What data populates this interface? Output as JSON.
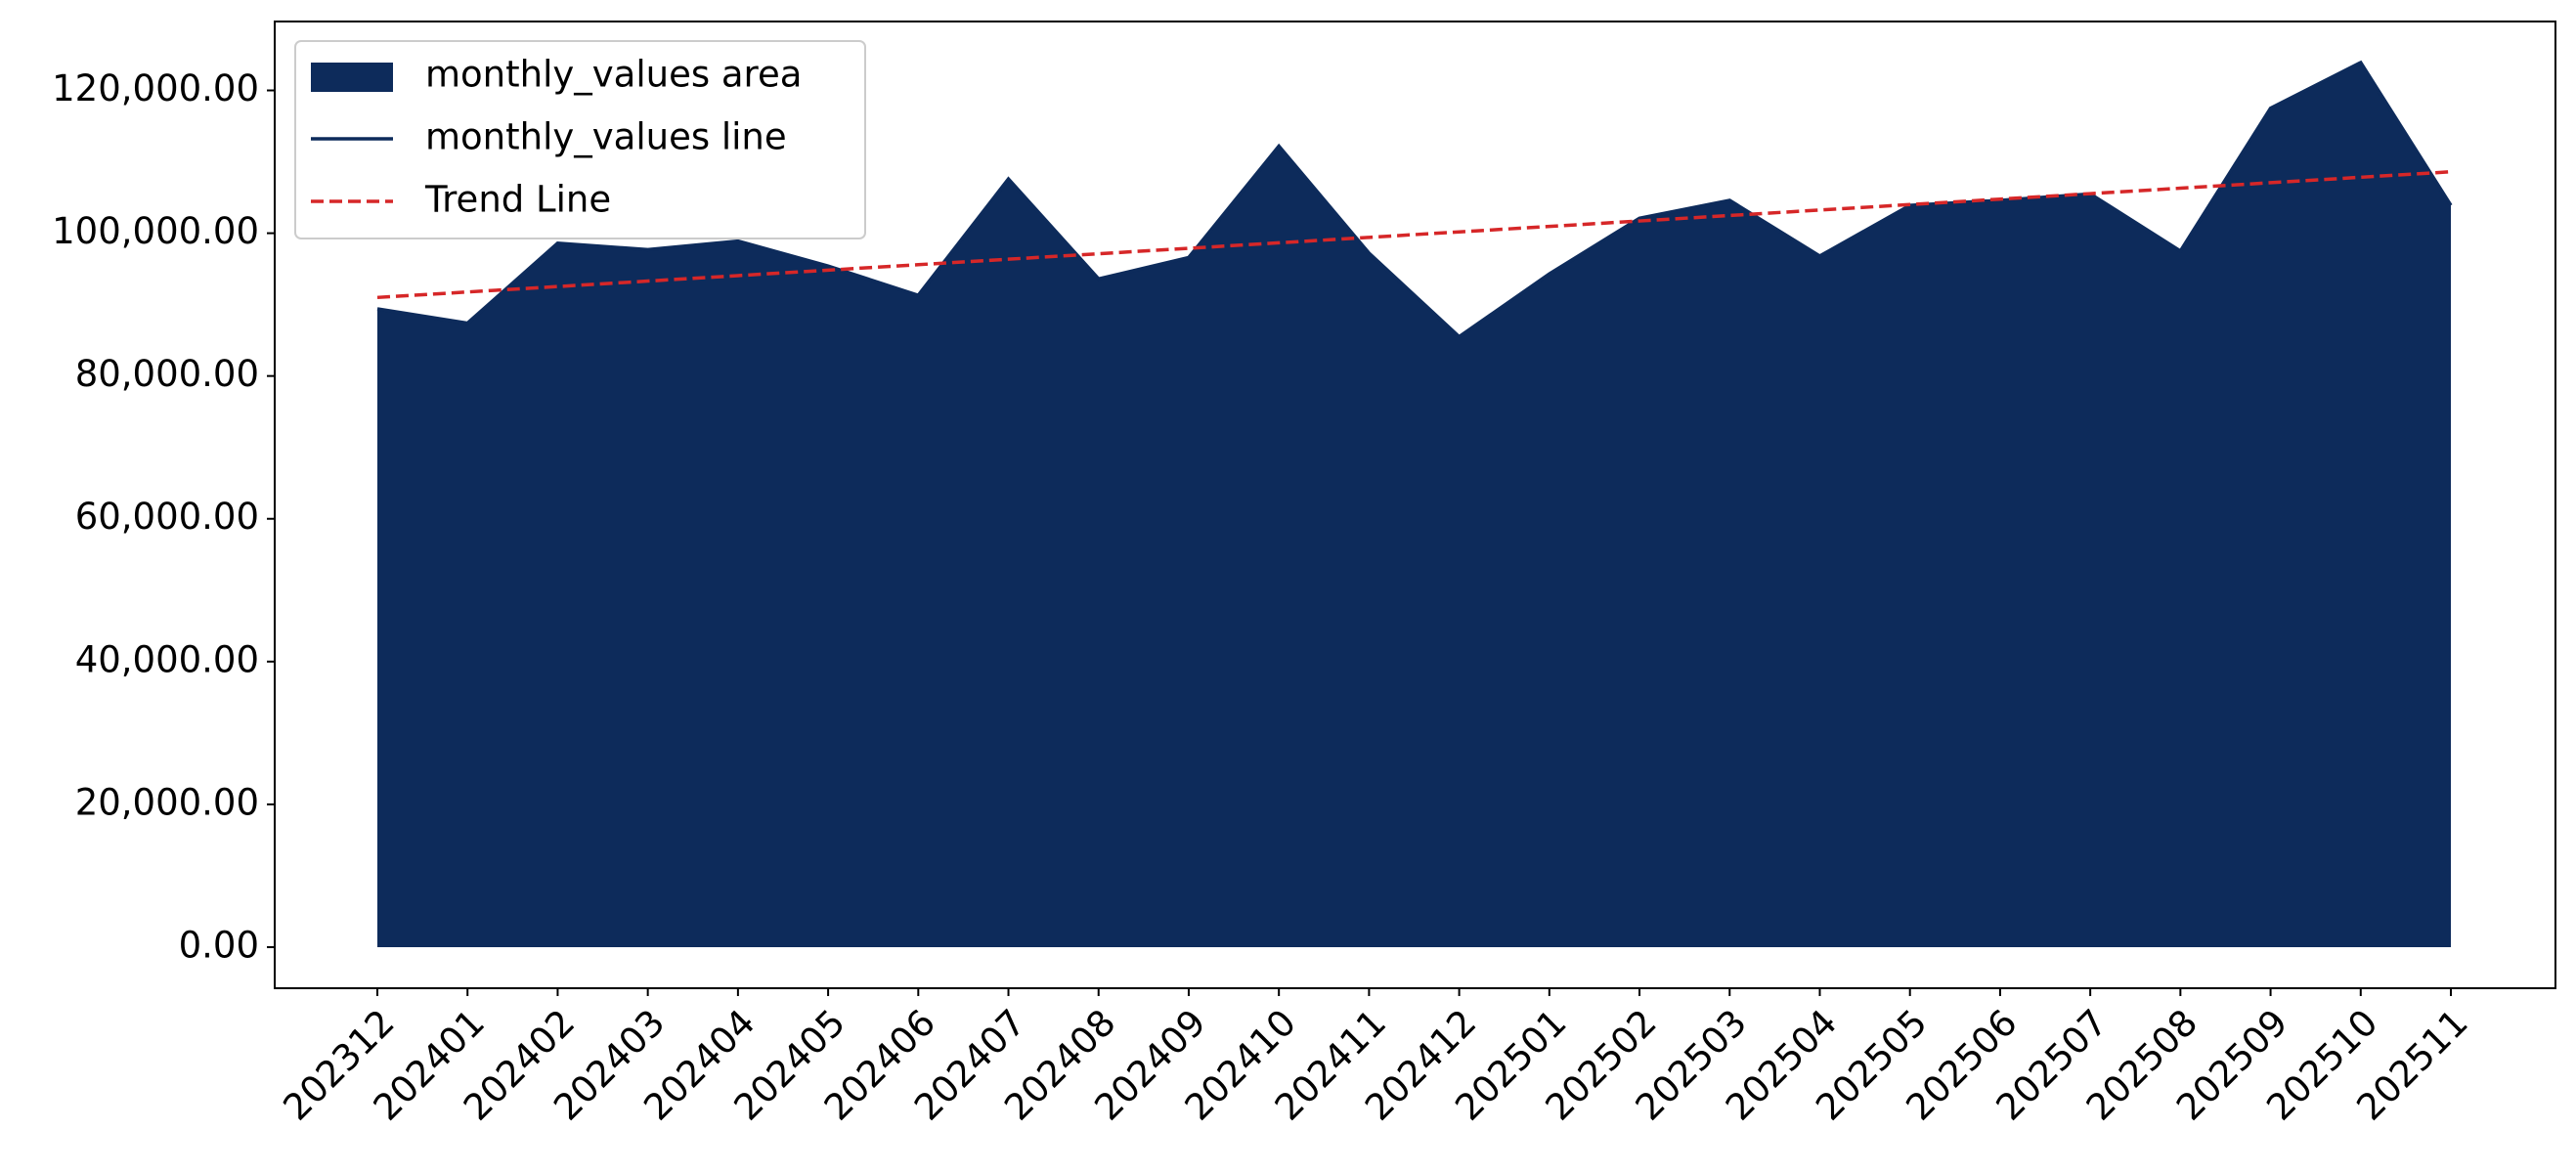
{
  "chart_data": {
    "type": "area",
    "categories": [
      "202312",
      "202401",
      "202402",
      "202403",
      "202404",
      "202405",
      "202406",
      "202407",
      "202408",
      "202409",
      "202410",
      "202411",
      "202412",
      "202501",
      "202502",
      "202503",
      "202504",
      "202505",
      "202506",
      "202507",
      "202508",
      "202509",
      "202510",
      "202511"
    ],
    "series": [
      {
        "name": "monthly_values area",
        "color": "#0d2b5b",
        "style": "area",
        "values": [
          89400,
          87400,
          98600,
          97700,
          98900,
          95400,
          91300,
          107600,
          93600,
          96600,
          112200,
          97200,
          85500,
          94300,
          102100,
          104600,
          96800,
          103900,
          104600,
          105500,
          97500,
          117500,
          123900,
          103900
        ]
      },
      {
        "name": "monthly_values line",
        "color": "#0d2b5b",
        "style": "line",
        "values": [
          89400,
          87400,
          98600,
          97700,
          98900,
          95400,
          91300,
          107600,
          93600,
          96600,
          112200,
          97200,
          85500,
          94300,
          102100,
          104600,
          96800,
          103900,
          104600,
          105500,
          97500,
          117500,
          123900,
          103900
        ]
      },
      {
        "name": "Trend Line",
        "color": "#d62728",
        "style": "dashed",
        "values": [
          91000,
          91765,
          92530,
          93296,
          94061,
          94826,
          95591,
          96357,
          97122,
          97887,
          98652,
          99417,
          100183,
          100948,
          101713,
          102478,
          103243,
          104009,
          104774,
          105539,
          106304,
          107070,
          107835,
          108600
        ]
      }
    ],
    "ylim": [
      -5750,
      129650
    ],
    "yticks": [
      {
        "value": 0,
        "label": "0.00"
      },
      {
        "value": 20000,
        "label": "20,000.00"
      },
      {
        "value": 40000,
        "label": "40,000.00"
      },
      {
        "value": 60000,
        "label": "60,000.00"
      },
      {
        "value": 80000,
        "label": "80,000.00"
      },
      {
        "value": 100000,
        "label": "100,000.00"
      },
      {
        "value": 120000,
        "label": "120,000.00"
      }
    ],
    "legend": "upper left"
  }
}
